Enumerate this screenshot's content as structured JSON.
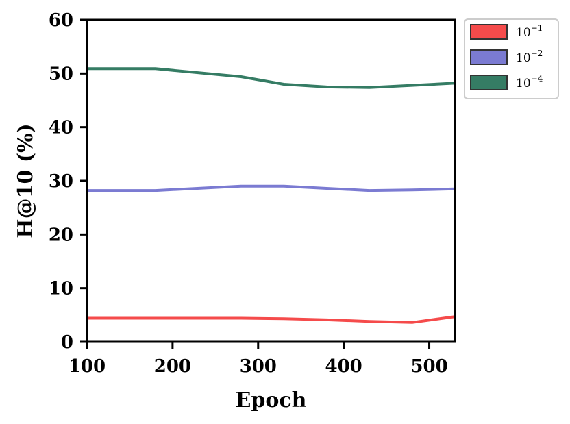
{
  "chart_data": {
    "type": "line",
    "xlabel": "Epoch",
    "ylabel": "H@10 (%)",
    "xlim": [
      100,
      530
    ],
    "ylim": [
      0,
      60
    ],
    "x_ticks": [
      100,
      200,
      300,
      400,
      500
    ],
    "y_ticks": [
      0,
      10,
      20,
      30,
      40,
      50,
      60
    ],
    "grid": false,
    "legend": {
      "placement": "outside-top-right",
      "entries": [
        {
          "base": "10",
          "exponent": "−1"
        },
        {
          "base": "10",
          "exponent": "−2"
        },
        {
          "base": "10",
          "exponent": "−4"
        }
      ]
    },
    "series": [
      {
        "name": "10^-1",
        "color": "#f54b4b",
        "x": [
          100,
          180,
          280,
          330,
          380,
          430,
          480,
          530
        ],
        "y": [
          4.4,
          4.4,
          4.4,
          4.3,
          4.1,
          3.8,
          3.6,
          4.7
        ]
      },
      {
        "name": "10^-2",
        "color": "#7b7bd2",
        "x": [
          100,
          180,
          280,
          330,
          380,
          430,
          480,
          530
        ],
        "y": [
          28.2,
          28.2,
          29.0,
          29.0,
          28.6,
          28.2,
          28.3,
          28.5
        ]
      },
      {
        "name": "10^-4",
        "color": "#357c64",
        "x": [
          100,
          180,
          280,
          330,
          380,
          430,
          480,
          530
        ],
        "y": [
          50.9,
          50.9,
          49.4,
          48.0,
          47.5,
          47.4,
          47.8,
          48.2
        ]
      }
    ]
  }
}
